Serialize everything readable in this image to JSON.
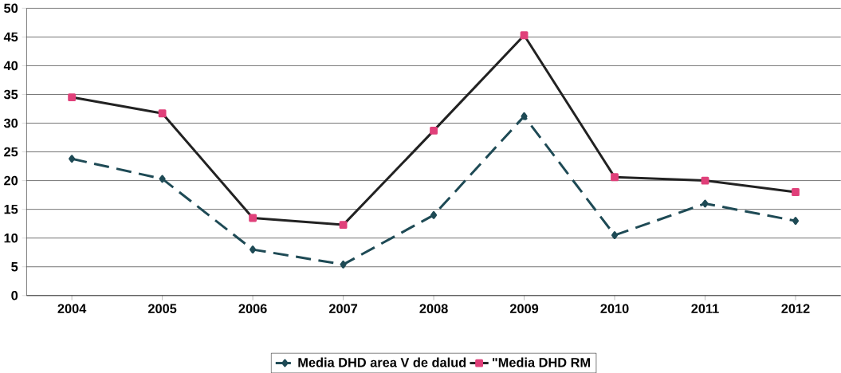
{
  "chart_data": {
    "type": "line",
    "categories": [
      "2004",
      "2005",
      "2006",
      "2007",
      "2008",
      "2009",
      "2010",
      "2011",
      "2012"
    ],
    "series": [
      {
        "name": "Media DHD area V de dalud",
        "color": "#1e4a55",
        "line_style": "dashed",
        "marker": "diamond",
        "values": [
          23.8,
          20.3,
          8,
          5.4,
          14,
          31.2,
          10.5,
          16,
          13
        ]
      },
      {
        "name": "\"Media DHD RM",
        "color": "#222222",
        "line_style": "solid",
        "marker": "square",
        "values": [
          34.5,
          31.7,
          13.5,
          12.3,
          28.7,
          45.3,
          20.6,
          20,
          18
        ]
      }
    ],
    "ylim": [
      0,
      50
    ],
    "yticks": [
      0,
      5,
      10,
      15,
      20,
      25,
      30,
      35,
      40,
      45,
      50
    ],
    "grid": "y",
    "legend": "bottom"
  }
}
